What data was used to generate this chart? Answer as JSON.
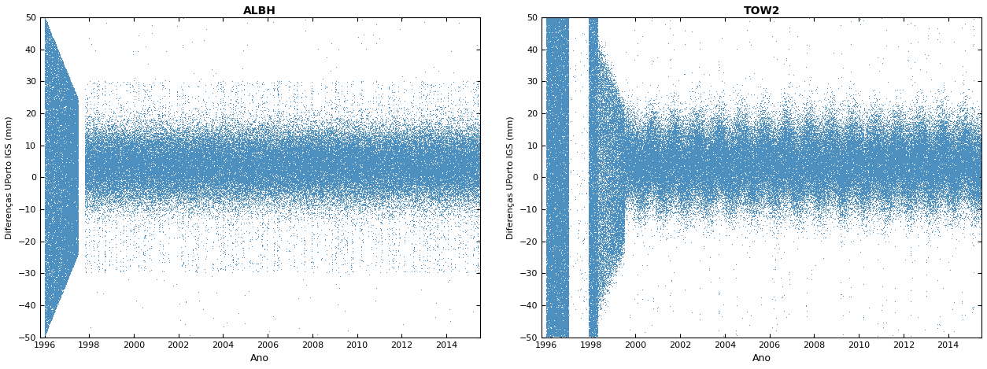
{
  "albh": {
    "title": "ALBH",
    "xlim": [
      1995.8,
      2015.5
    ],
    "ylim": [
      -50,
      50
    ],
    "xticks": [
      1996,
      1998,
      2000,
      2002,
      2004,
      2006,
      2008,
      2010,
      2012,
      2014
    ],
    "yticks": [
      -50,
      -40,
      -30,
      -20,
      -10,
      0,
      10,
      20,
      30,
      40,
      50
    ],
    "xlabel": "Ano",
    "ylabel": "Diferenças UPorto IGS (mm)",
    "dot_color": "#4d90c0",
    "dot_size": 0.8,
    "seed": 42
  },
  "tow2": {
    "title": "TOW2",
    "xlim": [
      1995.8,
      2015.5
    ],
    "ylim": [
      -50,
      50
    ],
    "xticks": [
      1996,
      1998,
      2000,
      2002,
      2004,
      2006,
      2008,
      2010,
      2012,
      2014
    ],
    "yticks": [
      -50,
      -40,
      -30,
      -20,
      -10,
      0,
      10,
      20,
      30,
      40,
      50
    ],
    "xlabel": "Ano",
    "ylabel": "Diferenças UPorto IGS (mm)",
    "dot_color": "#4d90c0",
    "dot_size": 0.8,
    "seed": 77
  },
  "background_color": "#ffffff",
  "figsize": [
    12.54,
    4.69
  ],
  "dpi": 100
}
